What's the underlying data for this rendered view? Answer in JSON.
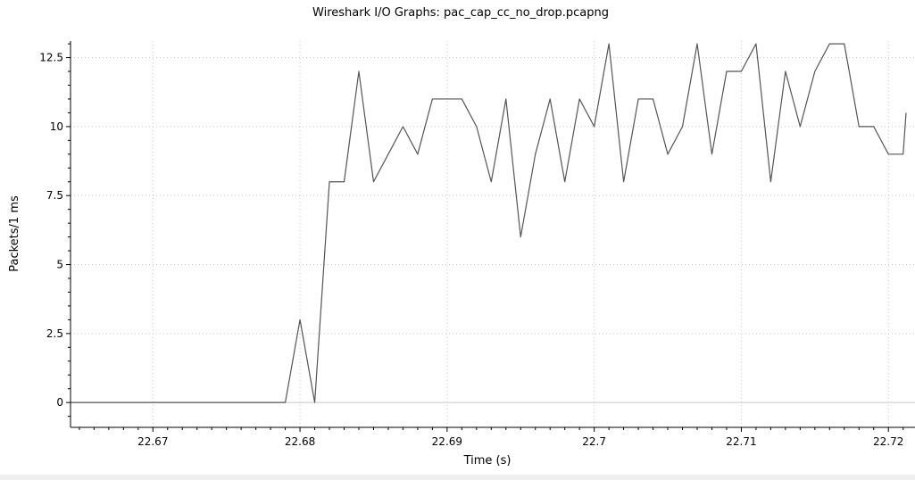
{
  "chart_data": {
    "type": "line",
    "title": "Wireshark I/O Graphs: pac_cap_cc_no_drop.pcapng",
    "xlabel": "Time (s)",
    "ylabel": "Packets/1 ms",
    "xlim": [
      22.6644,
      22.7212
    ],
    "ylim": [
      -0.9,
      13.1
    ],
    "x_ticks": [
      22.67,
      22.68,
      22.69,
      22.7,
      22.71,
      22.72
    ],
    "x_tick_labels": [
      "22.67",
      "22.68",
      "22.69",
      "22.7",
      "22.71",
      "22.72"
    ],
    "y_ticks": [
      0,
      2.5,
      5,
      7.5,
      10,
      12.5
    ],
    "y_tick_labels": [
      "0",
      "2.5",
      "5",
      "7.5",
      "10",
      "12.5"
    ],
    "grid": true,
    "colors": {
      "line": "#555555",
      "grid": "#c8c8c8",
      "axis": "#000000",
      "zero_line": "#c8c8c8"
    },
    "series": [
      {
        "x": [
          22.6644,
          22.665,
          22.666,
          22.667,
          22.668,
          22.669,
          22.67,
          22.671,
          22.672,
          22.673,
          22.674,
          22.675,
          22.676,
          22.677,
          22.678,
          22.679,
          22.68,
          22.681,
          22.682,
          22.683,
          22.684,
          22.685,
          22.686,
          22.687,
          22.688,
          22.689,
          22.69,
          22.691,
          22.692,
          22.693,
          22.694,
          22.695,
          22.696,
          22.697,
          22.698,
          22.699,
          22.7,
          22.701,
          22.702,
          22.703,
          22.704,
          22.705,
          22.706,
          22.707,
          22.708,
          22.709,
          22.71,
          22.711,
          22.712,
          22.713,
          22.714,
          22.715,
          22.716,
          22.717,
          22.718,
          22.719,
          22.72,
          22.721,
          22.7212
        ],
        "values": [
          0,
          0,
          0,
          0,
          0,
          0,
          0,
          0,
          0,
          0,
          0,
          0,
          0,
          0,
          0,
          0,
          3,
          0,
          8,
          8,
          12,
          8,
          9,
          10,
          9,
          11,
          11,
          11,
          10,
          8,
          11,
          6,
          9,
          11,
          8,
          11,
          10,
          13,
          8,
          11,
          11,
          9,
          10,
          13,
          9,
          12,
          12,
          13,
          8,
          12,
          10,
          12,
          13,
          13,
          10,
          10,
          9,
          9,
          10.5
        ]
      }
    ]
  }
}
